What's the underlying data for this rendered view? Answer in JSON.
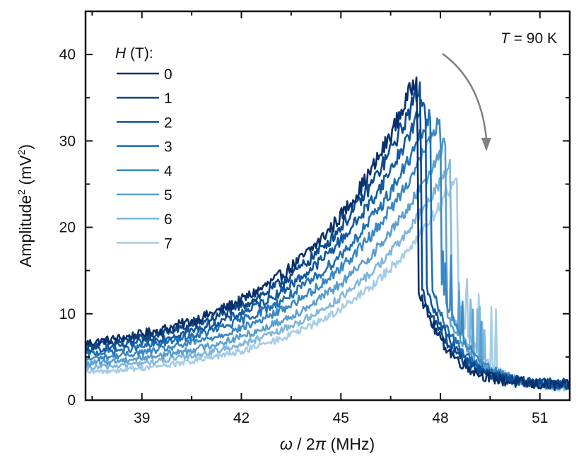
{
  "chart_data": {
    "type": "line",
    "title": "",
    "xlabel": "ω / 2π (MHz)",
    "xlabel_parts": {
      "symbol": "ω",
      "rest": " / 2",
      "pi": "π",
      "unit": " (MHz)"
    },
    "ylabel": "Amplitude² (mV²)",
    "ylabel_parts": {
      "base": "Amplitude",
      "sup": "2",
      "mid": " (mV",
      "sup2": "2",
      "end": ")"
    },
    "xlim": [
      37.3,
      51.9
    ],
    "ylim": [
      0,
      45
    ],
    "xticks": [
      39,
      42,
      45,
      48,
      51
    ],
    "xtick_labels": [
      "39",
      "42",
      "45",
      "48",
      "51"
    ],
    "xminor": [
      37.5,
      40.5,
      43.5,
      46.5,
      49.5
    ],
    "yticks": [
      0,
      10,
      20,
      30,
      40
    ],
    "ytick_labels": [
      "0",
      "10",
      "20",
      "30",
      "40"
    ],
    "yminor": [
      5,
      15,
      25,
      35
    ],
    "grid": false,
    "legend": {
      "title_symbol": "H",
      "title_rest": " (T):",
      "placement": "top-left"
    },
    "annotation": {
      "symbol": "T",
      "rest": " = 90 K",
      "placement": "top-right",
      "arrow": "curved arrow pointing downward indicating increasing field",
      "arrow_color": "#808080"
    },
    "series": [
      {
        "name": "0",
        "color": "#08306b",
        "peak_x": 47.3,
        "peak_y": 37.8,
        "base_left": 5.0,
        "tail_right": 1.6,
        "noise": 1.1
      },
      {
        "name": "1",
        "color": "#0b4a8c",
        "peak_x": 47.4,
        "peak_y": 36.5,
        "base_left": 4.7,
        "tail_right": 1.8,
        "noise": 1.0
      },
      {
        "name": "2",
        "color": "#14599e",
        "peak_x": 47.55,
        "peak_y": 35.0,
        "base_left": 4.4,
        "tail_right": 1.7,
        "noise": 0.9
      },
      {
        "name": "3",
        "color": "#2171b5",
        "peak_x": 47.7,
        "peak_y": 33.0,
        "base_left": 4.1,
        "tail_right": 1.6,
        "noise": 0.9
      },
      {
        "name": "4",
        "color": "#3a88c5",
        "peak_x": 48.0,
        "peak_y": 32.8,
        "base_left": 3.6,
        "tail_right": 1.5,
        "noise": 0.8
      },
      {
        "name": "5",
        "color": "#5a9fd0",
        "peak_x": 48.15,
        "peak_y": 30.0,
        "base_left": 3.2,
        "tail_right": 1.4,
        "noise": 0.8
      },
      {
        "name": "6",
        "color": "#7fb6dc",
        "peak_x": 48.3,
        "peak_y": 27.5,
        "base_left": 2.8,
        "tail_right": 1.3,
        "noise": 0.7
      },
      {
        "name": "7",
        "color": "#a6cde6",
        "peak_x": 48.5,
        "peak_y": 26.0,
        "base_left": 2.4,
        "tail_right": 1.2,
        "noise": 0.7
      }
    ]
  }
}
